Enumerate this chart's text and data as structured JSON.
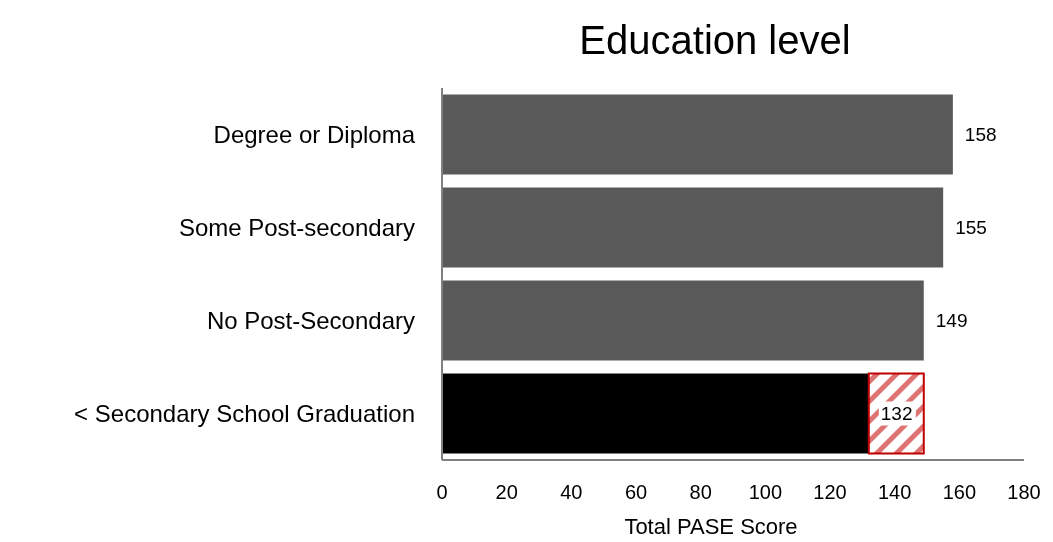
{
  "chart_data": {
    "type": "bar",
    "orientation": "horizontal",
    "stacked": true,
    "title": "Education level",
    "xlabel": "Total PASE Score",
    "categories": [
      "Degree or Diploma",
      "Some Post-secondary",
      "No Post-Secondary",
      "< Secondary School Graduation"
    ],
    "series": [
      {
        "colors": [
          "#595959",
          "#595959",
          "#595959",
          "#000000"
        ],
        "values": [
          158,
          155,
          149,
          132
        ],
        "value_labels": [
          "158",
          "155",
          "149",
          "132"
        ]
      },
      {
        "color": "#c00000",
        "values": [
          null,
          null,
          null,
          17
        ]
      }
    ],
    "xlim": [
      0,
      180
    ],
    "xticks": [
      0,
      20,
      40,
      60,
      80,
      100,
      120,
      140,
      160,
      180
    ],
    "grid": false
  }
}
